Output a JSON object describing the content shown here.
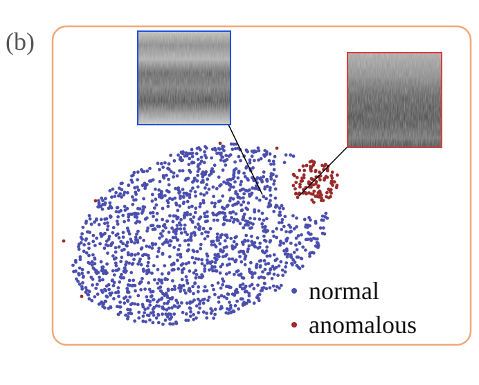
{
  "panel_label": "(b)",
  "legend": [
    {
      "name": "normal",
      "color": "#4b4fae"
    },
    {
      "name": "anomalous",
      "color": "#9a2b2b"
    }
  ]
}
